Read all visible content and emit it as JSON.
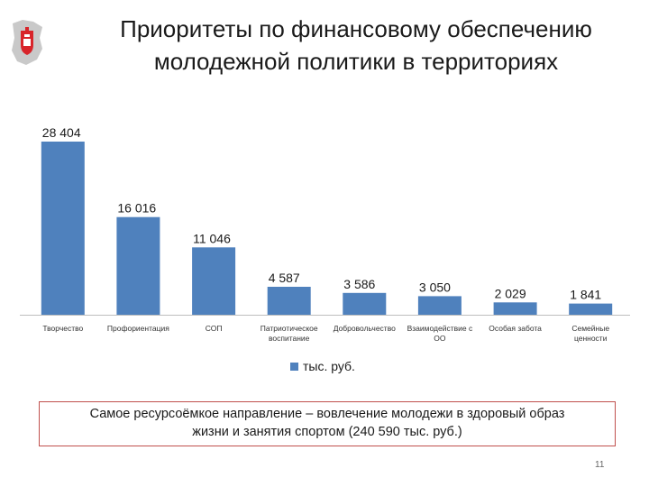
{
  "slide": {
    "title_line1": "Приоритеты по финансовому обеспечению",
    "title_line2": "молодежной политики в территориях",
    "note_line1": "Самое ресурсоёмкое направление – вовлечение молодежи в здоровый образ",
    "note_line2": "жизни и занятия спортом (240 590 тыс. руб.)",
    "page_number": "11",
    "logo_icon": "perm-krai-coat-of-arms-icon"
  },
  "colors": {
    "bar": "#4f81bd",
    "note_border": "#c0504d",
    "logo_red": "#d8242a"
  },
  "chart_data": {
    "type": "bar",
    "categories": [
      [
        "Творчество"
      ],
      [
        "Профориентация"
      ],
      [
        "СОП"
      ],
      [
        "Патриотическое",
        "воспитание"
      ],
      [
        "Добровольчество"
      ],
      [
        "Взаимодействие с",
        "ОО"
      ],
      [
        "Особая забота"
      ],
      [
        "Семейные",
        "ценности"
      ]
    ],
    "values": [
      28404,
      16016,
      11046,
      4587,
      3586,
      3050,
      2029,
      1841
    ],
    "value_labels": [
      "28 404",
      "16 016",
      "11 046",
      "4 587",
      "3 586",
      "3 050",
      "2 029",
      "1 841"
    ],
    "legend": [
      "тыс. руб."
    ],
    "legend_position": "bottom",
    "ylim": [
      0,
      28404
    ],
    "grid": false
  }
}
